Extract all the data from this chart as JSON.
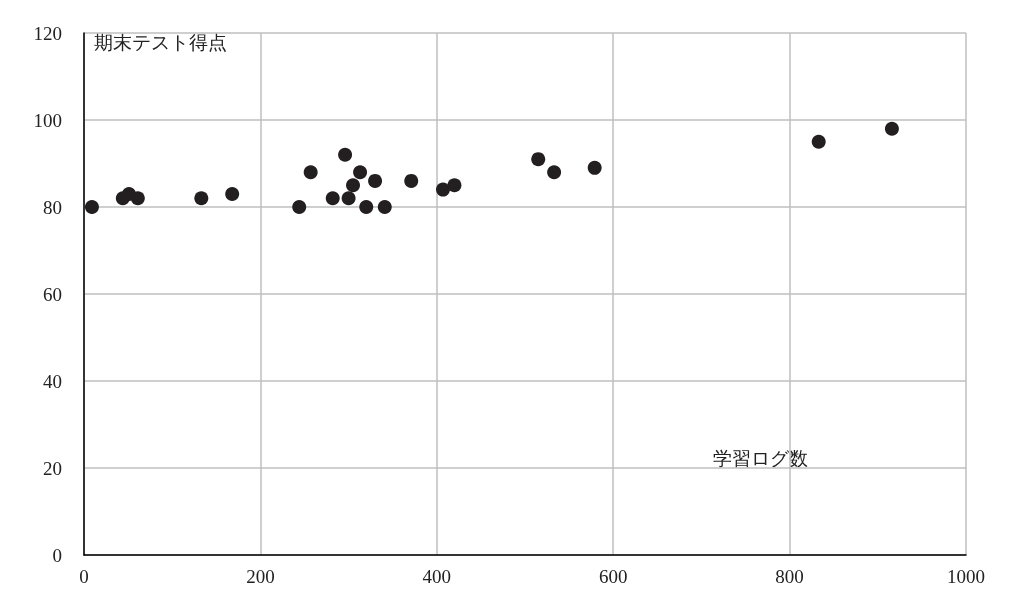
{
  "chart_data": {
    "type": "scatter",
    "xlabel": "学習ログ数",
    "ylabel": "期末テスト得点",
    "x": [
      9,
      44,
      51,
      61,
      133,
      168,
      244,
      257,
      282,
      296,
      300,
      305,
      313,
      320,
      330,
      341,
      371,
      407,
      420,
      515,
      533,
      579,
      833,
      916
    ],
    "values": [
      80,
      82,
      83,
      82,
      82,
      83,
      80,
      88,
      82,
      92,
      82,
      85,
      88,
      80,
      86,
      80,
      86,
      84,
      85,
      91,
      88,
      89,
      95,
      98
    ],
    "color": "#231f20",
    "marker": "circle",
    "xlim": [
      0,
      1000
    ],
    "xticks": [
      0,
      200,
      400,
      600,
      800,
      1000
    ],
    "ylim": [
      0,
      120
    ],
    "yticks": [
      0,
      20,
      40,
      60,
      80,
      100,
      120
    ],
    "grid": true
  }
}
